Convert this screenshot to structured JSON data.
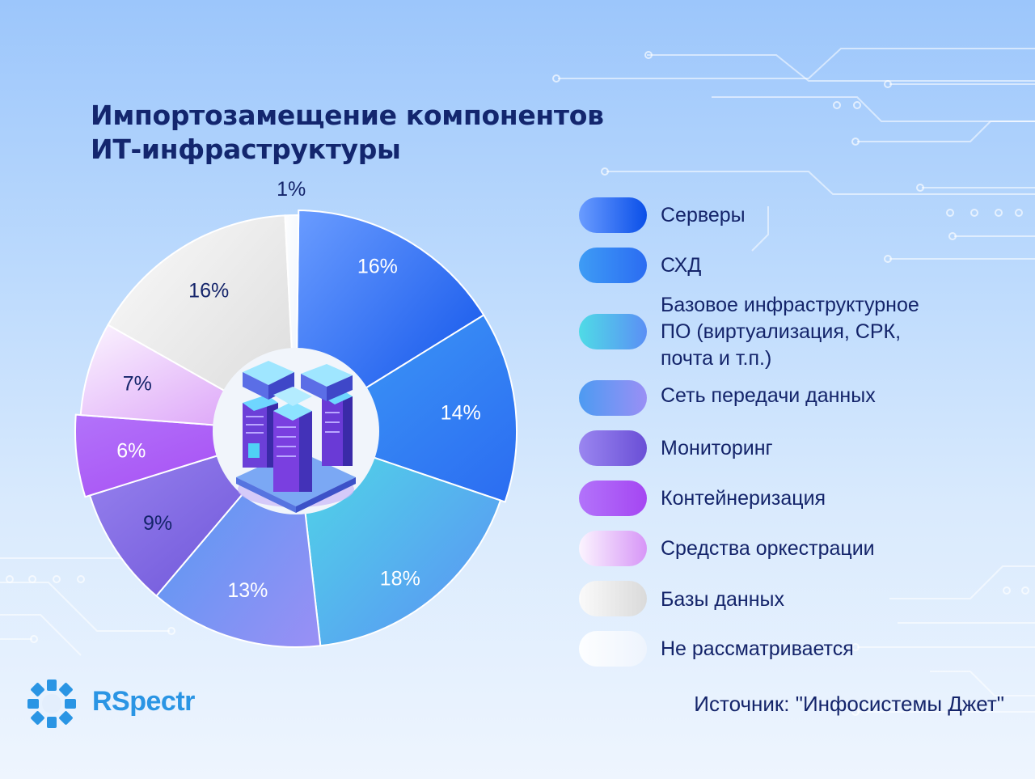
{
  "title": {
    "line1": "Импортозамещение компонентов",
    "line2": "ИТ-инфраструктуры"
  },
  "chart_data": {
    "type": "pie",
    "title": "Импортозамещение компонентов ИТ-инфраструктуры",
    "categories": [
      "Серверы",
      "СХД",
      "Базовое инфраструктурное ПО (виртуализация, СРК, почта и т.п.)",
      "Сеть передачи данных",
      "Мониторинг",
      "Контейнеризация",
      "Средства оркестрации",
      "Базы данных",
      "Не рассматривается"
    ],
    "values": [
      16,
      14,
      18,
      13,
      9,
      6,
      7,
      16,
      1
    ],
    "value_labels": [
      "16%",
      "14%",
      "18%",
      "13%",
      "9%",
      "6%",
      "7%",
      "16%",
      "1%"
    ],
    "colors": [
      [
        "#6a9cff",
        "#0a4fe8"
      ],
      [
        "#3e9cf5",
        "#2b6cf2"
      ],
      [
        "#4fdbe6",
        "#5b8ff5"
      ],
      [
        "#4d9bf2",
        "#9a8ff5"
      ],
      [
        "#9a86f0",
        "#6a4fd6"
      ],
      [
        "#b273fa",
        "#a546f2"
      ],
      [
        "#fbf4fe",
        "#d796f7"
      ],
      [
        "#fafafa",
        "#dadada"
      ],
      [
        "#fdfeff",
        "#eef4fd"
      ]
    ],
    "label_colors": [
      "#ffffff",
      "#ffffff",
      "#ffffff",
      "#ffffff",
      "#14246a",
      "#ffffff",
      "#14246a",
      "#14246a",
      "#14246a"
    ],
    "legend_position": "right"
  },
  "legend": {
    "items": [
      "Серверы",
      "СХД",
      "Базовое инфраструктурное ПО (виртуализация, СРК, почта и т.п.)",
      "Сеть передачи данных",
      "Мониторинг",
      "Контейнеризация",
      "Средства оркестрации",
      "Базы данных",
      "Не рассматривается"
    ],
    "multiline": {
      "line1": "Базовое инфраструктурное",
      "line2": "ПО (виртуализация, СРК,",
      "line3": "почта и т.п.)"
    }
  },
  "source": "Источник: \"Инфосистемы Джет\"",
  "logo": {
    "text": "RSpectr",
    "icon": "ring-logo-icon"
  }
}
